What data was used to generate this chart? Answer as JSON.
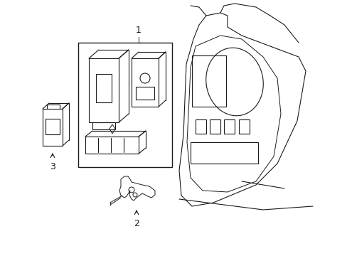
{
  "background_color": "#ffffff",
  "line_color": "#1a1a1a",
  "lw": 0.8,
  "label_fontsize": 9,
  "fig_width": 4.89,
  "fig_height": 3.6,
  "dpi": 100,
  "xlim": [
    0,
    489
  ],
  "ylim": [
    0,
    360
  ]
}
